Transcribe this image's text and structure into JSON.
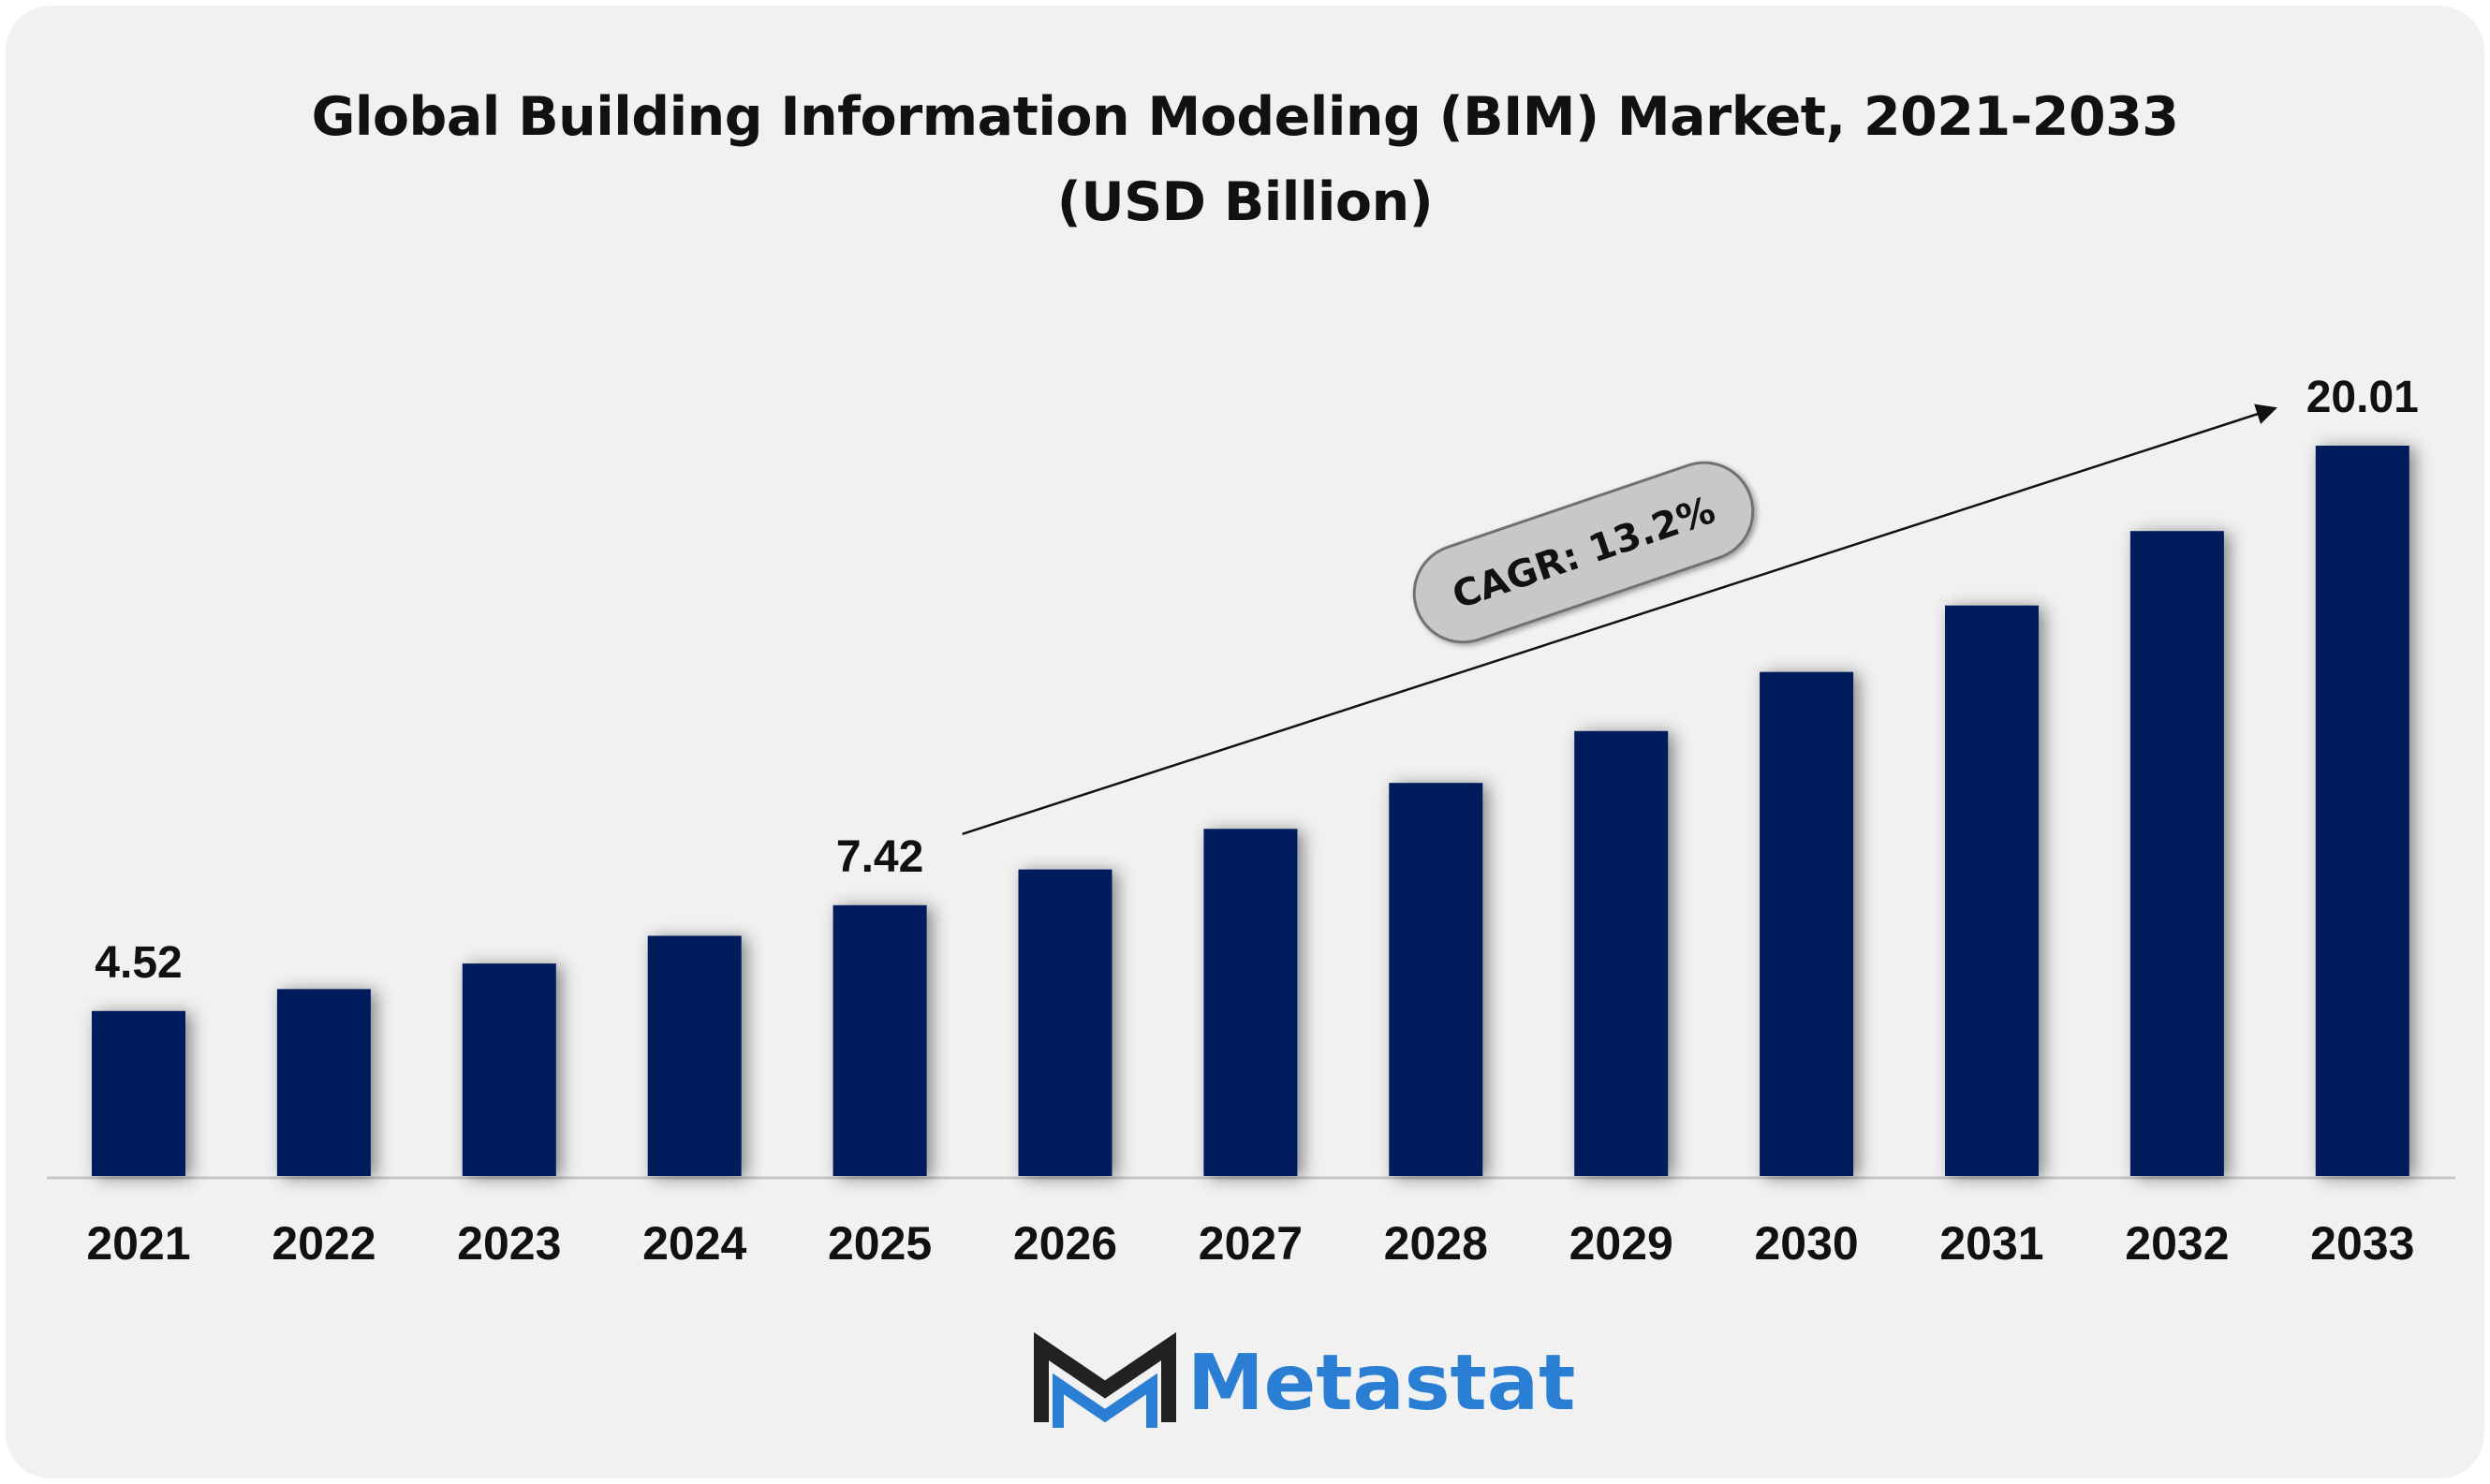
{
  "chart_data": {
    "type": "bar",
    "title": "Global Building Information Modeling (BIM) Market, 2021-2033",
    "subtitle": "(USD Billion)",
    "categories": [
      "2021",
      "2022",
      "2023",
      "2024",
      "2025",
      "2026",
      "2027",
      "2028",
      "2029",
      "2030",
      "2031",
      "2032",
      "2033"
    ],
    "values": [
      4.52,
      5.12,
      5.82,
      6.58,
      7.42,
      8.4,
      9.51,
      10.77,
      12.19,
      13.81,
      15.63,
      17.67,
      20.01
    ],
    "data_labels": [
      {
        "category": "2021",
        "text": "4.52"
      },
      {
        "category": "2025",
        "text": "7.42"
      },
      {
        "category": "2033",
        "text": "20.01"
      }
    ],
    "ylim": [
      0,
      20.01
    ],
    "xlabel": "",
    "ylabel": "",
    "grid": false,
    "legend": "none",
    "bar_color": "#031c5b",
    "annotation": {
      "text": "CAGR: 13.2%",
      "arrow_from_category": "2025",
      "arrow_to_category": "2033"
    }
  },
  "colors": {
    "background": "#f1f1f1",
    "bar": "#031c5b",
    "baseline": "#c6c6c6",
    "cagr_pill": "#c8c8c8",
    "logo_dark": "#222222",
    "logo_blue": "#2a7fd4"
  },
  "branding": {
    "logo_icon": "metastat-m-icon",
    "name": "Metastat"
  }
}
